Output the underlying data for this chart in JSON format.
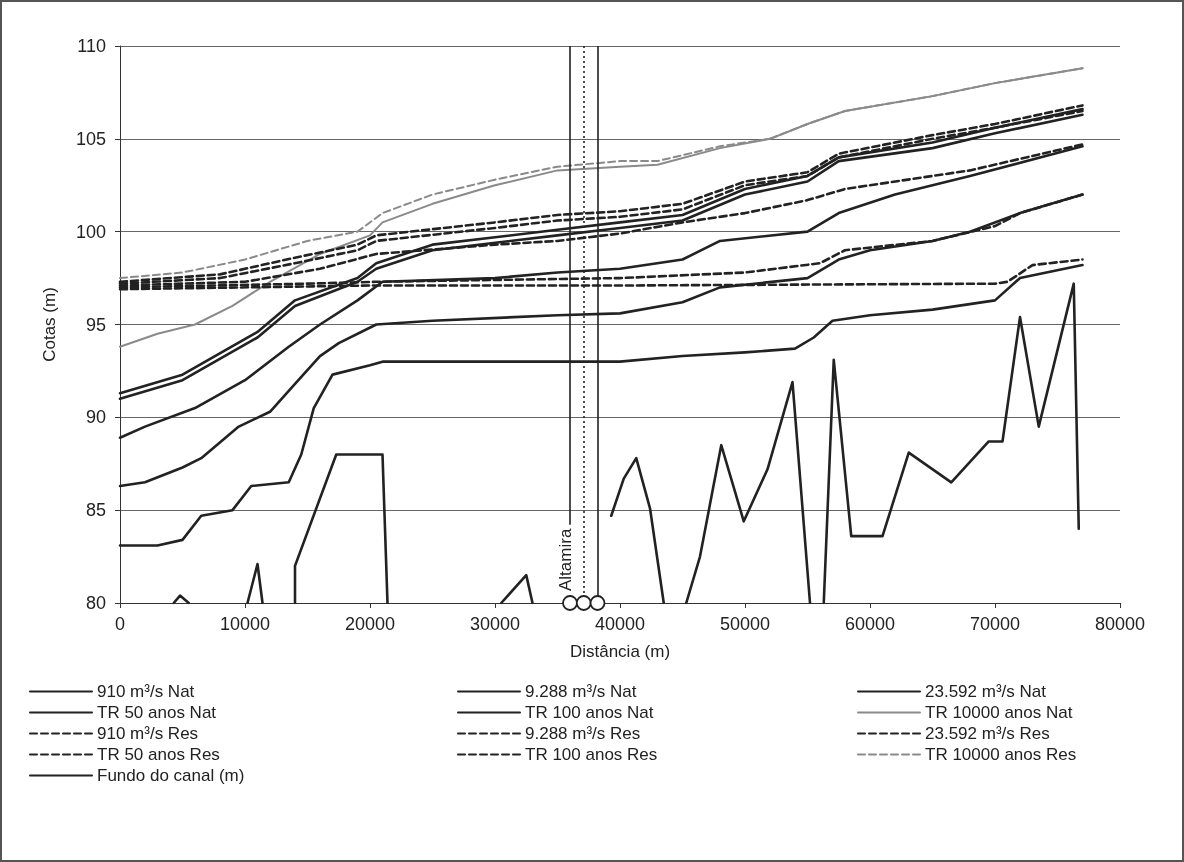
{
  "chart_data": {
    "type": "line",
    "xlabel": "Distância (m)",
    "ylabel": "Cotas (m)",
    "xlim": [
      0,
      80000
    ],
    "xticks": [
      0,
      10000,
      20000,
      30000,
      40000,
      50000,
      60000,
      70000,
      80000
    ],
    "ylim": [
      80,
      110
    ],
    "yticks": [
      80,
      85,
      90,
      95,
      100,
      105,
      110
    ],
    "grid": "y",
    "legend": "bottom",
    "marker": "none",
    "line_style": "solid",
    "series": [
      {
        "name": "910 m³/s Nat",
        "color": "#222222",
        "x": [
          0,
          3000,
          5000,
          6500,
          9000,
          10500,
          13500,
          14500,
          15500,
          17000,
          20000,
          21000,
          40000,
          45000,
          50000,
          54000,
          55500,
          57000,
          60000,
          65000,
          70000,
          72000,
          77000
        ],
        "values": [
          83.1,
          83.1,
          83.4,
          84.7,
          85,
          86.3,
          86.5,
          88,
          90.5,
          92.3,
          92.8,
          93,
          93,
          93.3,
          93.5,
          93.7,
          94.3,
          95.2,
          95.5,
          95.8,
          96.3,
          97.5,
          98.2
        ]
      },
      {
        "name": "9.288 m³/s Nat",
        "color": "#222222",
        "x": [
          0,
          2000,
          5000,
          6500,
          9500,
          12000,
          14000,
          16000,
          17500,
          20500,
          25000,
          35000,
          40000,
          45000,
          48000,
          55000,
          57500,
          60000,
          65000,
          68000,
          72000,
          77000
        ],
        "values": [
          86.3,
          86.5,
          87.3,
          87.8,
          89.5,
          90.3,
          91.8,
          93.3,
          94,
          95,
          95.2,
          95.5,
          95.6,
          96.2,
          97,
          97.5,
          98.5,
          99,
          99.5,
          100,
          101,
          102
        ]
      },
      {
        "name": "23.592 m³/s Nat",
        "color": "#222222",
        "x": [
          0,
          2000,
          6000,
          10000,
          13500,
          16000,
          19000,
          21000,
          30000,
          35000,
          40000,
          45000,
          48000,
          55000,
          57500,
          62000,
          68000,
          77000
        ],
        "values": [
          88.9,
          89.5,
          90.5,
          92,
          93.8,
          95,
          96.3,
          97.3,
          97.5,
          97.8,
          98,
          98.5,
          99.5,
          100,
          101,
          102,
          103,
          104.6
        ]
      },
      {
        "name": "TR 50 anos Nat",
        "color": "#222222",
        "x": [
          0,
          5000,
          11000,
          14000,
          19000,
          20500,
          25000,
          35000,
          40000,
          45000,
          50000,
          55000,
          57500,
          65000,
          70000,
          77000
        ],
        "values": [
          91,
          92,
          94.3,
          96,
          97.3,
          98,
          99,
          99.8,
          100.2,
          100.6,
          102,
          102.7,
          103.8,
          104.5,
          105.3,
          106.3
        ]
      },
      {
        "name": "TR 100 anos Nat",
        "color": "#222222",
        "x": [
          0,
          5000,
          11000,
          14000,
          19000,
          20500,
          25000,
          35000,
          40000,
          45000,
          50000,
          55000,
          57500,
          65000,
          70000,
          77000
        ],
        "values": [
          91.3,
          92.3,
          94.6,
          96.3,
          97.5,
          98.3,
          99.3,
          100.1,
          100.5,
          100.9,
          102.3,
          103,
          104,
          104.8,
          105.6,
          106.6
        ]
      },
      {
        "name": "TR 10000 anos Nat",
        "color": "#8a8a8a",
        "x": [
          0,
          3000,
          6000,
          9000,
          12000,
          16000,
          20000,
          21000,
          25000,
          30000,
          35000,
          40000,
          43000,
          48000,
          52000,
          55000,
          58000,
          65000,
          70000,
          77000
        ],
        "values": [
          93.8,
          94.5,
          95,
          96,
          97.3,
          98.8,
          99.8,
          100.5,
          101.5,
          102.5,
          103.3,
          103.5,
          103.6,
          104.5,
          105,
          105.8,
          106.5,
          107.3,
          108,
          108.8
        ]
      },
      {
        "name": "910 m³/s Res",
        "color": "#222222",
        "line_style": "dashed",
        "x": [
          0,
          20000,
          40000,
          70000,
          71000,
          73000,
          77000
        ],
        "values": [
          96.9,
          97.1,
          97.1,
          97.2,
          97.3,
          98.2,
          98.5
        ]
      },
      {
        "name": "9.288 m³/s Res",
        "color": "#222222",
        "line_style": "dashed",
        "x": [
          0,
          15000,
          20500,
          30000,
          40000,
          50000,
          56000,
          58000,
          65000,
          70000,
          72000,
          77000
        ],
        "values": [
          97,
          97.2,
          97.3,
          97.4,
          97.5,
          97.8,
          98.3,
          99,
          99.5,
          100.3,
          101,
          102
        ]
      },
      {
        "name": "23.592 m³/s Res",
        "color": "#222222",
        "line_style": "dashed",
        "x": [
          0,
          10000,
          16000,
          20500,
          30000,
          35000,
          40000,
          45000,
          50000,
          55000,
          58000,
          68000,
          77000
        ],
        "values": [
          97.1,
          97.3,
          98,
          98.8,
          99.3,
          99.5,
          99.9,
          100.5,
          101,
          101.7,
          102.3,
          103.3,
          104.7
        ]
      },
      {
        "name": "TR 50 anos Res",
        "color": "#222222",
        "line_style": "dashed",
        "x": [
          0,
          8000,
          14000,
          19000,
          20500,
          30000,
          35000,
          40000,
          45000,
          50000,
          55000,
          57500,
          65000,
          70000,
          77000
        ],
        "values": [
          97.2,
          97.5,
          98.3,
          99,
          99.5,
          100.2,
          100.6,
          100.8,
          101.2,
          102.5,
          103,
          104,
          105,
          105.6,
          106.5
        ]
      },
      {
        "name": "TR 100 anos Res",
        "color": "#222222",
        "line_style": "dashed",
        "x": [
          0,
          8000,
          14000,
          19000,
          20500,
          30000,
          35000,
          40000,
          45000,
          50000,
          55000,
          57500,
          65000,
          70000,
          77000
        ],
        "values": [
          97.3,
          97.7,
          98.6,
          99.3,
          99.8,
          100.5,
          100.9,
          101.1,
          101.5,
          102.7,
          103.2,
          104.2,
          105.2,
          105.8,
          106.8
        ]
      },
      {
        "name": "TR 10000 anos Res",
        "color": "#8a8a8a",
        "line_style": "dashed",
        "x": [
          0,
          5000,
          10000,
          15000,
          19000,
          21000,
          25000,
          30000,
          35000,
          40000,
          43000,
          48000,
          52000,
          55000,
          58000,
          65000,
          70000,
          77000
        ],
        "values": [
          97.5,
          97.8,
          98.5,
          99.5,
          100,
          101,
          102,
          102.8,
          103.5,
          103.8,
          103.8,
          104.6,
          105,
          105.8,
          106.5,
          107.3,
          108,
          108.8
        ]
      },
      {
        "name": "Fundo do canal (m)",
        "color": "#222222",
        "x": [
          4300,
          4800,
          5500,
          6000,
          10200,
          11000,
          11400,
          12000,
          14000,
          14000,
          17300,
          21000,
          21400,
          25000,
          30500,
          32500,
          33000,
          36000,
          39300,
          40300,
          41300,
          42400,
          43500,
          44500,
          45300,
          46400,
          48100,
          49900,
          51800,
          53800,
          55200,
          55800,
          56300,
          57100,
          58500,
          61000,
          63100,
          66500,
          69500,
          70600,
          72000,
          73500,
          76300,
          76700
        ],
        "values": [
          80,
          80.4,
          80,
          null,
          80,
          82.1,
          80,
          null,
          80,
          82,
          88,
          88,
          80,
          null,
          80,
          81.5,
          80,
          null,
          84.7,
          86.7,
          87.8,
          85.1,
          80,
          null,
          80,
          82.5,
          88.5,
          84.4,
          87.2,
          91.9,
          80,
          null,
          80,
          93.1,
          83.6,
          83.6,
          88.1,
          86.5,
          88.7,
          88.7,
          95.4,
          89.5,
          97.2,
          84
        ]
      }
    ],
    "ref_lines": [
      {
        "axis": "x",
        "value": 36000,
        "color": "#222222",
        "line_style": "solid"
      },
      {
        "axis": "x",
        "value": 37100,
        "label": "Altamira",
        "color": "#222222",
        "line_style": "dotted"
      },
      {
        "axis": "x",
        "value": 38200,
        "color": "#222222",
        "line_style": "solid"
      }
    ]
  }
}
